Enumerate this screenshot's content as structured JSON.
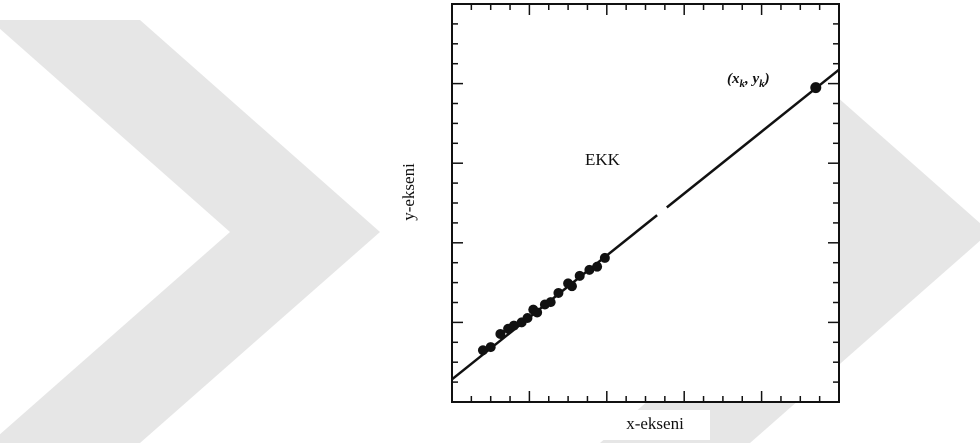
{
  "chart_data": {
    "type": "scatter",
    "title": "",
    "xlabel": "x-ekseni",
    "ylabel": "y-ekseni",
    "xlim": [
      0,
      10
    ],
    "ylim": [
      0,
      10
    ],
    "grid": false,
    "axis_tick_labels": false,
    "fit_line": {
      "label": "EKK",
      "intercept": 0.57,
      "slope": 0.778
    },
    "points": [
      [
        0.8,
        1.3
      ],
      [
        1.0,
        1.38
      ],
      [
        1.25,
        1.71
      ],
      [
        1.45,
        1.84
      ],
      [
        1.6,
        1.92
      ],
      [
        1.8,
        2.0
      ],
      [
        1.95,
        2.11
      ],
      [
        2.1,
        2.32
      ],
      [
        2.2,
        2.25
      ],
      [
        2.4,
        2.45
      ],
      [
        2.55,
        2.51
      ],
      [
        2.75,
        2.74
      ],
      [
        3.0,
        2.98
      ],
      [
        3.1,
        2.91
      ],
      [
        3.3,
        3.17
      ],
      [
        3.55,
        3.32
      ],
      [
        3.75,
        3.4
      ],
      [
        3.95,
        3.62
      ]
    ],
    "highlight_point": {
      "x": 9.4,
      "y": 7.9,
      "label": {
        "base1": "(x",
        "sub1": "k",
        "mid": ", y",
        "sub2": "k",
        "end": ")"
      }
    }
  },
  "watermark": {
    "color": "#e6e6e6"
  }
}
